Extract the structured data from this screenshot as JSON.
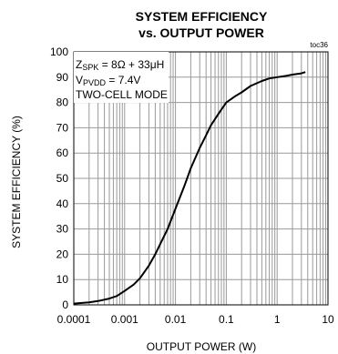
{
  "chart_data": {
    "type": "line",
    "title": "SYSTEM EFFICIENCY",
    "subtitle": "vs. OUTPUT POWER",
    "tag": "toc36",
    "xlabel": "OUTPUT POWER (W)",
    "ylabel": "SYSTEM EFFICIENCY (%)",
    "x_scale": "log",
    "xlim": [
      0.0001,
      10
    ],
    "ylim": [
      0,
      100
    ],
    "x_ticks": [
      0.0001,
      0.001,
      0.01,
      0.1,
      1,
      10
    ],
    "x_tick_labels": [
      "0.0001",
      "0.001",
      "0.01",
      "0.1",
      "1",
      "10"
    ],
    "y_ticks": [
      0,
      10,
      20,
      30,
      40,
      50,
      60,
      70,
      80,
      90,
      100
    ],
    "y_tick_labels": [
      "0",
      "10",
      "20",
      "30",
      "40",
      "50",
      "60",
      "70",
      "80",
      "90",
      "100"
    ],
    "grid": true,
    "annotations": {
      "line1": {
        "main": "Z",
        "sub": "SPK",
        "rest": " = 8Ω + 33μH"
      },
      "line2": {
        "main": "V",
        "sub": "PVDD",
        "rest": " = 7.4V"
      },
      "line3": "TWO-CELL MODE"
    },
    "series": [
      {
        "x": [
          0.0001,
          0.0002,
          0.0003,
          0.0005,
          0.0007,
          0.001,
          0.0015,
          0.002,
          0.003,
          0.004,
          0.005,
          0.007,
          0.01,
          0.015,
          0.02,
          0.03,
          0.04,
          0.05,
          0.07,
          0.1,
          0.15,
          0.2,
          0.3,
          0.5,
          0.7,
          1,
          1.5,
          2,
          3,
          3.6
        ],
        "y": [
          0.5,
          1,
          1.5,
          2.5,
          3.5,
          5.5,
          8,
          10.5,
          15.5,
          20,
          24,
          30,
          38,
          47,
          54,
          62,
          67,
          71,
          75.5,
          80,
          82.5,
          84,
          86.5,
          88.5,
          89.5,
          90,
          90.5,
          91,
          91.5,
          92
        ]
      }
    ]
  }
}
